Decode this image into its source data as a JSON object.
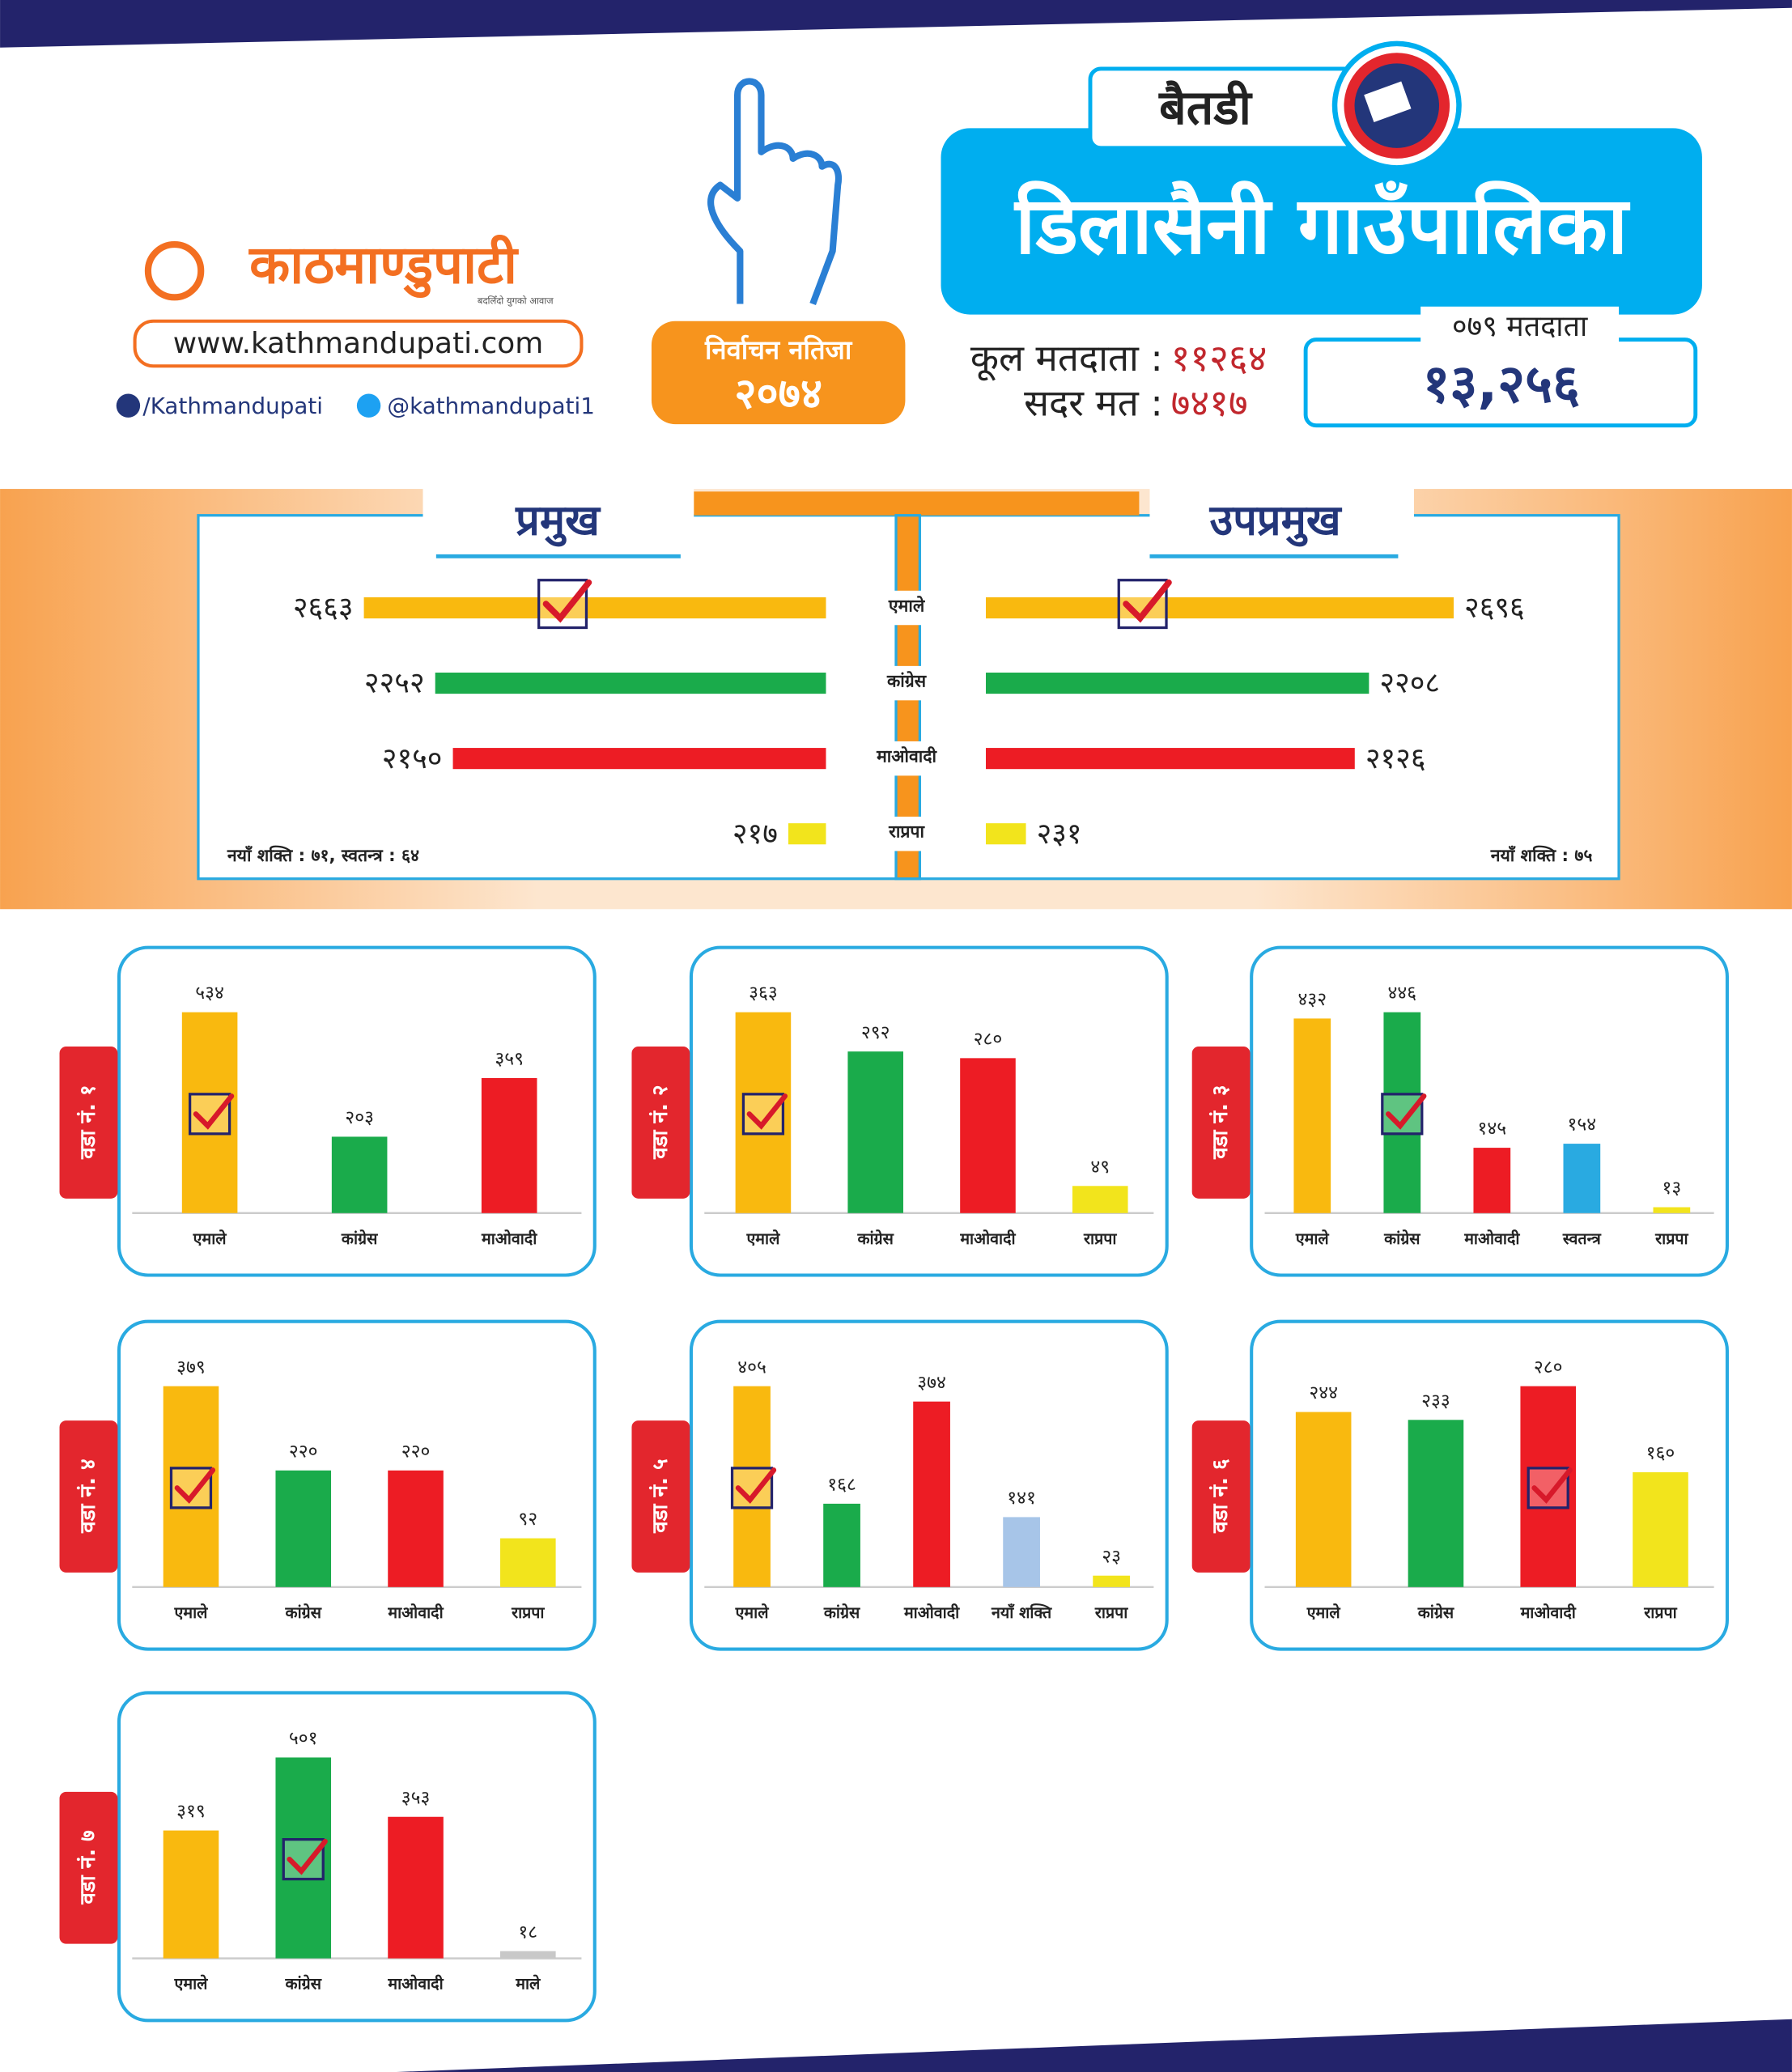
{
  "header": {
    "logo": "काठमाण्डुपाटी",
    "tagline": "बदलिँदो युगको आवाज",
    "website": "www.kathmandupati.com",
    "facebook": "/Kathmandupati",
    "twitter": "@kathmandupati1",
    "badge_title": "निर्वाचन नतिजा",
    "badge_year": "२०७४",
    "district": "बैतडी",
    "municipality": "डिलासैनी गाउँपालिका",
    "total_voters_label": "कूल मतदाता :",
    "total_voters": "११२६४",
    "valid_votes_label": "सदर मत :",
    "valid_votes": "७४१७",
    "voters_079_label": "०७९ मतदाता",
    "voters_079": "१३,२५६"
  },
  "chart_data": [
    {
      "type": "bar",
      "orientation": "horizontal",
      "categories": [
        "एमाले",
        "कांग्रेस",
        "माओवादी",
        "राप्रपा"
      ],
      "colors": [
        "#f9b90f",
        "#1aab4b",
        "#ed1c24",
        "#f2e41c"
      ],
      "winner": 0,
      "series": [
        {
          "name": "प्रमुख",
          "values": [
            2663,
            2252,
            2150,
            217
          ],
          "value_labels": [
            "२६६३",
            "२२५२",
            "२१५०",
            "२१७"
          ],
          "note": "नयाँ शक्ति : ७१, स्वतन्त्र : ६४"
        },
        {
          "name": "उपप्रमुख",
          "values": [
            2696,
            2208,
            2126,
            231
          ],
          "value_labels": [
            "२६९६",
            "२२०८",
            "२१२६",
            "२३१"
          ],
          "note": "नयाँ शक्ति : ७५"
        }
      ]
    },
    {
      "type": "bar",
      "title": "वडा नं. १",
      "categories": [
        "एमाले",
        "कांग्रेस",
        "माओवादी"
      ],
      "values": [
        534,
        203,
        359
      ],
      "value_labels": [
        "५३४",
        "२०३",
        "३५९"
      ],
      "colors": [
        "#f9b90f",
        "#1aab4b",
        "#ed1c24"
      ],
      "winner": 0
    },
    {
      "type": "bar",
      "title": "वडा नं. २",
      "categories": [
        "एमाले",
        "कांग्रेस",
        "माओवादी",
        "राप्रपा"
      ],
      "values": [
        363,
        292,
        280,
        49
      ],
      "value_labels": [
        "३६३",
        "२९२",
        "२८०",
        "४९"
      ],
      "colors": [
        "#f9b90f",
        "#1aab4b",
        "#ed1c24",
        "#f2e41c"
      ],
      "winner": 0
    },
    {
      "type": "bar",
      "title": "वडा नं. ३",
      "categories": [
        "एमाले",
        "कांग्रेस",
        "माओवादी",
        "स्वतन्त्र",
        "राप्रपा"
      ],
      "values": [
        432,
        446,
        145,
        154,
        13
      ],
      "value_labels": [
        "४३२",
        "४४६",
        "१४५",
        "१५४",
        "१३"
      ],
      "colors": [
        "#f9b90f",
        "#1aab4b",
        "#ed1c24",
        "#29aae1",
        "#f2e41c"
      ],
      "winner": 1
    },
    {
      "type": "bar",
      "title": "वडा नं. ४",
      "categories": [
        "एमाले",
        "कांग्रेस",
        "माओवादी",
        "राप्रपा"
      ],
      "values": [
        379,
        220,
        220,
        92
      ],
      "value_labels": [
        "३७९",
        "२२०",
        "२२०",
        "९२"
      ],
      "colors": [
        "#f9b90f",
        "#1aab4b",
        "#ed1c24",
        "#f2e41c"
      ],
      "winner": 0
    },
    {
      "type": "bar",
      "title": "वडा नं. ५",
      "categories": [
        "एमाले",
        "कांग्रेस",
        "माओवादी",
        "नयाँ शक्ति",
        "राप्रपा"
      ],
      "values": [
        405,
        168,
        374,
        141,
        23
      ],
      "value_labels": [
        "४०५",
        "१६८",
        "३७४",
        "१४१",
        "२३"
      ],
      "colors": [
        "#f9b90f",
        "#1aab4b",
        "#ed1c24",
        "#a7c5e8",
        "#f2e41c"
      ],
      "winner": 0
    },
    {
      "type": "bar",
      "title": "वडा नं. ६",
      "categories": [
        "एमाले",
        "कांग्रेस",
        "माओवादी",
        "राप्रपा"
      ],
      "values": [
        244,
        233,
        280,
        160
      ],
      "value_labels": [
        "२४४",
        "२३३",
        "२८०",
        "१६०"
      ],
      "colors": [
        "#f9b90f",
        "#1aab4b",
        "#ed1c24",
        "#f2e41c"
      ],
      "winner": 2
    },
    {
      "type": "bar",
      "title": "वडा नं. ७",
      "categories": [
        "एमाले",
        "कांग्रेस",
        "माओवादी",
        "माले"
      ],
      "values": [
        319,
        501,
        353,
        18
      ],
      "value_labels": [
        "३१९",
        "५०१",
        "३५३",
        "१८"
      ],
      "colors": [
        "#f9b90f",
        "#1aab4b",
        "#ed1c24",
        "#c8c8c8"
      ],
      "winner": 1
    }
  ]
}
